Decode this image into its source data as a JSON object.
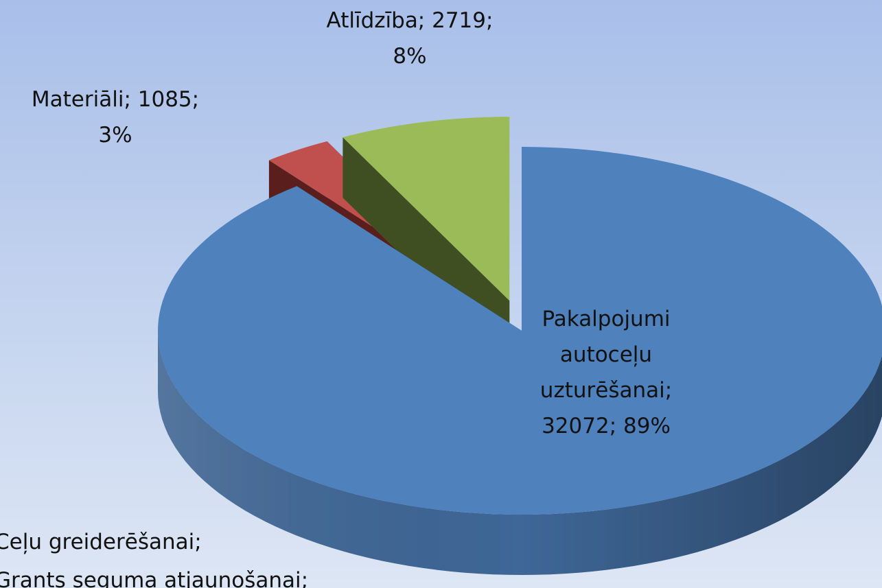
{
  "chart_data": {
    "type": "pie3d",
    "values": [
      32072,
      1085,
      2719
    ],
    "value_labels": [
      [
        "Pakalpojumi",
        "autoceļu",
        "uzturēšanai;",
        "32072; 89%"
      ],
      [
        "Materiāli; 1085;",
        "3%"
      ],
      [
        "Atlīdzība; 2719;",
        "8%"
      ]
    ],
    "colors": [
      "#4f81bd",
      "#c0504d",
      "#9bbb59"
    ],
    "side_colors": [
      "#2f5280",
      "#5a1e1d",
      "#3f4f22"
    ]
  },
  "notes": [
    "Ceļu greiderēšanai;",
    "Grants seguma atjaunošanai;"
  ]
}
